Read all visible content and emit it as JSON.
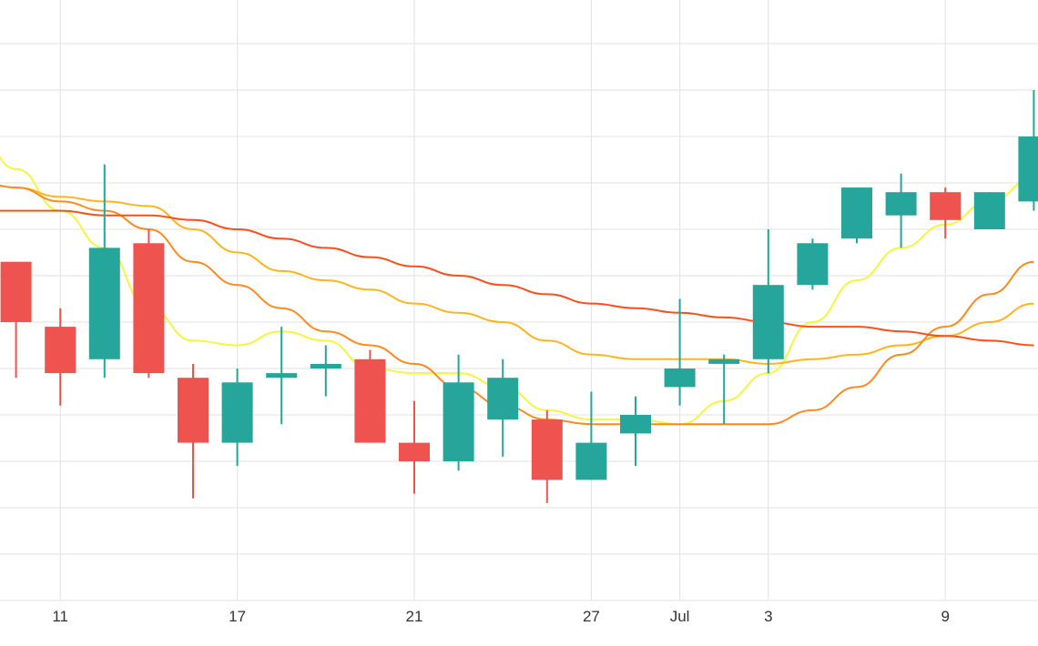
{
  "chart_data": {
    "type": "candlestick",
    "title": "",
    "xlabel": "",
    "ylabel": "",
    "x_ticks": [
      {
        "label": "11",
        "slot": 1
      },
      {
        "label": "17",
        "slot": 5
      },
      {
        "label": "21",
        "slot": 9
      },
      {
        "label": "27",
        "slot": 13
      },
      {
        "label": "Jul",
        "slot": 15
      },
      {
        "label": "3",
        "slot": 17
      },
      {
        "label": "9",
        "slot": 21
      }
    ],
    "ylim": [
      0,
      13
    ],
    "grid": true,
    "colors": {
      "up": "#26a69a",
      "down": "#ef5350",
      "grid": "#e6e6e6"
    },
    "candles": [
      {
        "slot": 0,
        "open": 7.3,
        "high": 7.3,
        "low": 4.8,
        "close": 6.0
      },
      {
        "slot": 1,
        "open": 5.9,
        "high": 6.3,
        "low": 4.2,
        "close": 4.9
      },
      {
        "slot": 2,
        "open": 5.2,
        "high": 9.4,
        "low": 4.8,
        "close": 7.6
      },
      {
        "slot": 3,
        "open": 7.7,
        "high": 8.0,
        "low": 4.8,
        "close": 4.9
      },
      {
        "slot": 4,
        "open": 4.8,
        "high": 5.1,
        "low": 2.2,
        "close": 3.4
      },
      {
        "slot": 5,
        "open": 3.4,
        "high": 5.0,
        "low": 2.9,
        "close": 4.7
      },
      {
        "slot": 6,
        "open": 4.8,
        "high": 5.9,
        "low": 3.8,
        "close": 4.9
      },
      {
        "slot": 7,
        "open": 5.0,
        "high": 5.5,
        "low": 4.4,
        "close": 5.1
      },
      {
        "slot": 8,
        "open": 5.2,
        "high": 5.4,
        "low": 3.4,
        "close": 3.4
      },
      {
        "slot": 9,
        "open": 3.4,
        "high": 4.3,
        "low": 2.3,
        "close": 3.0
      },
      {
        "slot": 10,
        "open": 3.0,
        "high": 5.3,
        "low": 2.8,
        "close": 4.7
      },
      {
        "slot": 11,
        "open": 3.9,
        "high": 5.2,
        "low": 3.1,
        "close": 4.8
      },
      {
        "slot": 12,
        "open": 3.9,
        "high": 4.1,
        "low": 2.1,
        "close": 2.6
      },
      {
        "slot": 13,
        "open": 2.6,
        "high": 4.5,
        "low": 2.6,
        "close": 3.4
      },
      {
        "slot": 14,
        "open": 3.6,
        "high": 4.4,
        "low": 2.9,
        "close": 4.0
      },
      {
        "slot": 15,
        "open": 4.6,
        "high": 6.5,
        "low": 4.2,
        "close": 5.0
      },
      {
        "slot": 16,
        "open": 5.1,
        "high": 5.3,
        "low": 3.8,
        "close": 5.2
      },
      {
        "slot": 17,
        "open": 5.2,
        "high": 8.0,
        "low": 4.9,
        "close": 6.8
      },
      {
        "slot": 18,
        "open": 6.8,
        "high": 7.8,
        "low": 6.7,
        "close": 7.7
      },
      {
        "slot": 19,
        "open": 7.8,
        "high": 8.9,
        "low": 7.7,
        "close": 8.9
      },
      {
        "slot": 20,
        "open": 8.3,
        "high": 9.2,
        "low": 7.6,
        "close": 8.8
      },
      {
        "slot": 21,
        "open": 8.8,
        "high": 8.9,
        "low": 7.8,
        "close": 8.2
      },
      {
        "slot": 22,
        "open": 8.0,
        "high": 8.8,
        "low": 8.0,
        "close": 8.8
      },
      {
        "slot": 23,
        "open": 8.6,
        "high": 11.0,
        "low": 8.4,
        "close": 10.0
      }
    ],
    "series": [
      {
        "color": "#f5f542",
        "values": [
          [
            -0.8,
            9.9
          ],
          [
            0,
            9.3
          ],
          [
            1,
            8.4
          ],
          [
            2,
            7.6
          ],
          [
            3,
            6.3
          ],
          [
            4,
            5.6
          ],
          [
            5,
            5.5
          ],
          [
            6,
            5.8
          ],
          [
            7,
            5.6
          ],
          [
            8,
            5.0
          ],
          [
            9,
            4.9
          ],
          [
            10,
            4.9
          ],
          [
            11,
            4.6
          ],
          [
            12,
            4.1
          ],
          [
            13,
            3.9
          ],
          [
            14,
            3.9
          ],
          [
            15,
            3.8
          ],
          [
            16,
            4.3
          ],
          [
            17,
            4.9
          ],
          [
            18,
            6.0
          ],
          [
            19,
            6.9
          ],
          [
            20,
            7.6
          ],
          [
            21,
            8.1
          ],
          [
            22,
            8.6
          ],
          [
            23,
            9.1
          ]
        ]
      },
      {
        "color": "#ffb521",
        "values": [
          [
            -0.8,
            9.0
          ],
          [
            0,
            8.9
          ],
          [
            1,
            8.7
          ],
          [
            2,
            8.6
          ],
          [
            3,
            8.5
          ],
          [
            4,
            8.0
          ],
          [
            5,
            7.5
          ],
          [
            6,
            7.1
          ],
          [
            7,
            6.9
          ],
          [
            8,
            6.7
          ],
          [
            9,
            6.4
          ],
          [
            10,
            6.2
          ],
          [
            11,
            6.0
          ],
          [
            12,
            5.6
          ],
          [
            13,
            5.3
          ],
          [
            14,
            5.2
          ],
          [
            15,
            5.2
          ],
          [
            16,
            5.2
          ],
          [
            17,
            5.1
          ],
          [
            18,
            5.2
          ],
          [
            19,
            5.3
          ],
          [
            20,
            5.5
          ],
          [
            21,
            5.7
          ],
          [
            22,
            6.0
          ],
          [
            23,
            6.4
          ]
        ]
      },
      {
        "color": "#ff8a1f",
        "values": [
          [
            -0.8,
            9.0
          ],
          [
            0,
            8.9
          ],
          [
            1,
            8.6
          ],
          [
            2,
            8.4
          ],
          [
            3,
            8.0
          ],
          [
            4,
            7.3
          ],
          [
            5,
            6.8
          ],
          [
            6,
            6.3
          ],
          [
            7,
            5.8
          ],
          [
            8,
            5.5
          ],
          [
            9,
            5.1
          ],
          [
            10,
            4.6
          ],
          [
            11,
            4.2
          ],
          [
            12,
            3.9
          ],
          [
            13,
            3.8
          ],
          [
            14,
            3.8
          ],
          [
            15,
            3.8
          ],
          [
            16,
            3.8
          ],
          [
            17,
            3.8
          ],
          [
            18,
            4.1
          ],
          [
            19,
            4.6
          ],
          [
            20,
            5.3
          ],
          [
            21,
            5.9
          ],
          [
            22,
            6.6
          ],
          [
            23,
            7.3
          ]
        ]
      },
      {
        "color": "#ff4e1a",
        "values": [
          [
            -0.8,
            8.4
          ],
          [
            0,
            8.4
          ],
          [
            1,
            8.4
          ],
          [
            2,
            8.3
          ],
          [
            3,
            8.3
          ],
          [
            4,
            8.2
          ],
          [
            5,
            8.0
          ],
          [
            6,
            7.8
          ],
          [
            7,
            7.6
          ],
          [
            8,
            7.4
          ],
          [
            9,
            7.2
          ],
          [
            10,
            7.0
          ],
          [
            11,
            6.8
          ],
          [
            12,
            6.6
          ],
          [
            13,
            6.4
          ],
          [
            14,
            6.3
          ],
          [
            15,
            6.2
          ],
          [
            16,
            6.1
          ],
          [
            17,
            6.0
          ],
          [
            18,
            5.9
          ],
          [
            19,
            5.9
          ],
          [
            20,
            5.8
          ],
          [
            21,
            5.7
          ],
          [
            22,
            5.6
          ],
          [
            23,
            5.5
          ]
        ]
      }
    ]
  }
}
